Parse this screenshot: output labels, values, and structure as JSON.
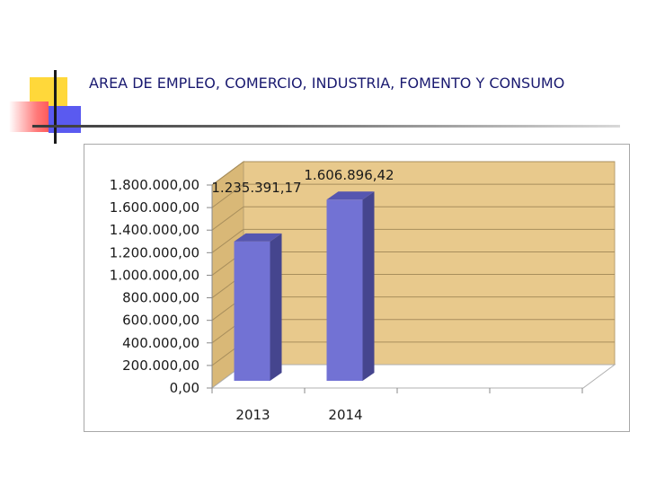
{
  "slide": {
    "title": "AREA DE EMPLEO, COMERCIO, INDUSTRIA, FOMENTO Y CONSUMO"
  },
  "colors": {
    "title": "#1a1a70",
    "bar_front": "#7272d4",
    "bar_side": "#45458e",
    "bar_top": "#5656b0",
    "wall": "#e8c98c",
    "floor": "#ffffff"
  },
  "chart_data": {
    "type": "bar",
    "categories": [
      "2013",
      "2014"
    ],
    "values": [
      1235391.17,
      1606896.42
    ],
    "data_labels": [
      "1.235.391,17",
      "1.606.896,42"
    ],
    "ylim": [
      0,
      1800000
    ],
    "y_ticks": [
      0,
      200000,
      400000,
      600000,
      800000,
      1000000,
      1200000,
      1400000,
      1600000,
      1800000
    ],
    "y_tick_labels": [
      "0,00",
      "200.000,00",
      "400.000,00",
      "600.000,00",
      "800.000,00",
      "1.000.000,00",
      "1.200.000,00",
      "1.400.000,00",
      "1.600.000,00",
      "1.800.000,00"
    ],
    "grid": true,
    "legend": "none",
    "style": "3d"
  }
}
